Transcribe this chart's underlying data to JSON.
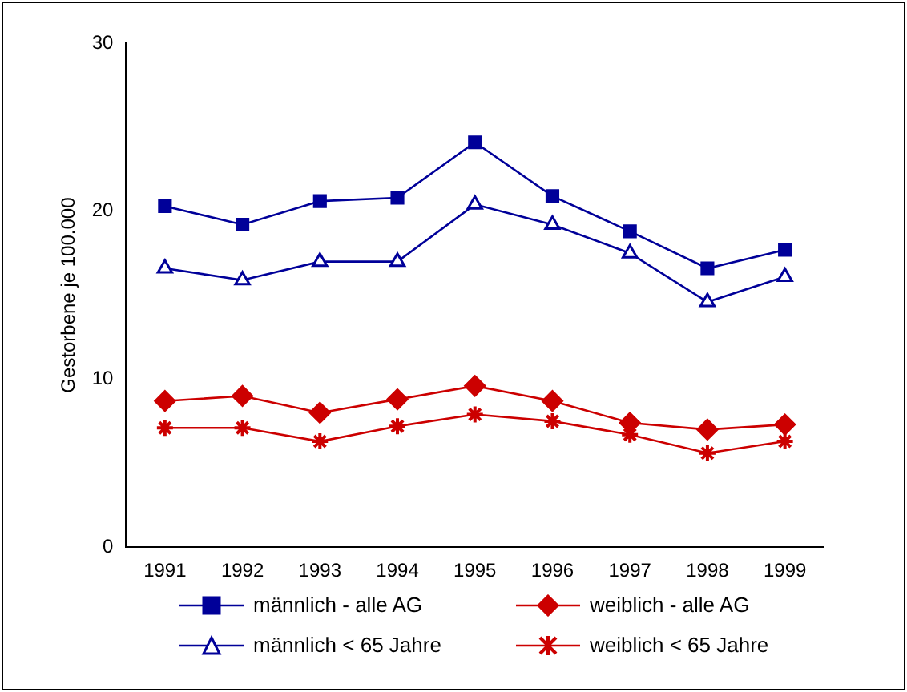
{
  "chart_data": {
    "type": "line",
    "ylabel": "Gestorbene je 100.000",
    "categories": [
      "1991",
      "1992",
      "1993",
      "1994",
      "1995",
      "1996",
      "1997",
      "1998",
      "1999"
    ],
    "series": [
      {
        "name": "männlich - alle AG",
        "color": "#000099",
        "marker": "square",
        "values": [
          20.3,
          19.2,
          20.6,
          20.8,
          24.1,
          20.9,
          18.8,
          16.6,
          17.7
        ]
      },
      {
        "name": "weiblich - alle AG",
        "color": "#cc0000",
        "marker": "diamond",
        "values": [
          8.7,
          9.0,
          8.0,
          8.8,
          9.6,
          8.7,
          7.4,
          7.0,
          7.3
        ]
      },
      {
        "name": "männlich < 65 Jahre",
        "color": "#000099",
        "marker": "triangle",
        "values": [
          16.6,
          15.9,
          17.0,
          17.0,
          20.4,
          19.2,
          17.5,
          14.6,
          16.1
        ]
      },
      {
        "name": "weiblich < 65 Jahre",
        "color": "#cc0000",
        "marker": "cross",
        "values": [
          7.1,
          7.1,
          6.3,
          7.2,
          7.9,
          7.5,
          6.7,
          5.6,
          6.3
        ]
      }
    ],
    "ylim": [
      0,
      30
    ],
    "yticks": [
      0,
      10,
      20,
      30
    ],
    "grid": false,
    "legend": "bottom",
    "line_style": "solid"
  }
}
